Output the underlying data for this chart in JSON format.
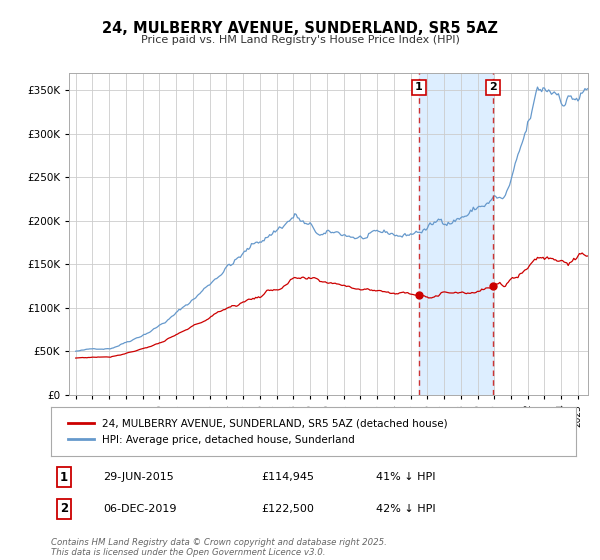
{
  "title": "24, MULBERRY AVENUE, SUNDERLAND, SR5 5AZ",
  "subtitle": "Price paid vs. HM Land Registry's House Price Index (HPI)",
  "legend_line1": "24, MULBERRY AVENUE, SUNDERLAND, SR5 5AZ (detached house)",
  "legend_line2": "HPI: Average price, detached house, Sunderland",
  "annotation1_date": "29-JUN-2015",
  "annotation1_price": "£114,945",
  "annotation1_hpi": "41% ↓ HPI",
  "annotation2_date": "06-DEC-2019",
  "annotation2_price": "£122,500",
  "annotation2_hpi": "42% ↓ HPI",
  "footer": "Contains HM Land Registry data © Crown copyright and database right 2025.\nThis data is licensed under the Open Government Licence v3.0.",
  "red_color": "#cc0000",
  "blue_color": "#6699cc",
  "highlight_fill": "#ddeeff",
  "vline_color": "#cc3333",
  "grid_color": "#cccccc",
  "background_color": "#ffffff",
  "ylim": [
    0,
    370000
  ],
  "yticks": [
    0,
    50000,
    100000,
    150000,
    200000,
    250000,
    300000,
    350000
  ],
  "ytick_labels": [
    "£0",
    "£50K",
    "£100K",
    "£150K",
    "£200K",
    "£250K",
    "£300K",
    "£350K"
  ],
  "event1_x": 2015.5,
  "event2_x": 2019.92,
  "xlim_left": 1994.6,
  "xlim_right": 2025.6
}
